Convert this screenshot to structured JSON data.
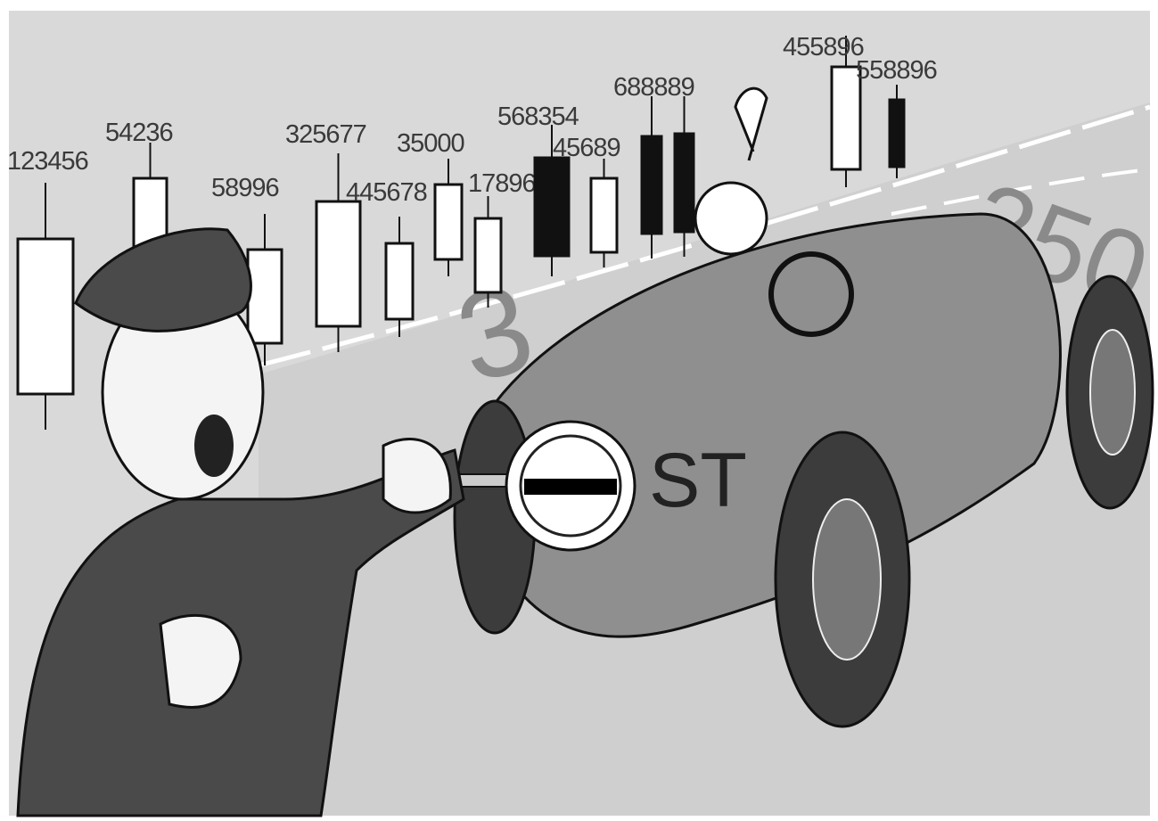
{
  "candles": [
    {
      "label": "123456"
    },
    {
      "label": "54236"
    },
    {
      "label": "58996"
    },
    {
      "label": "325677"
    },
    {
      "label": "445678"
    },
    {
      "label": "35000"
    },
    {
      "label": "17896"
    },
    {
      "label": "568354"
    },
    {
      "label": "45689"
    },
    {
      "label": "688889"
    },
    {
      "label": "455896"
    },
    {
      "label": "558896"
    }
  ],
  "sign_text": "ST"
}
